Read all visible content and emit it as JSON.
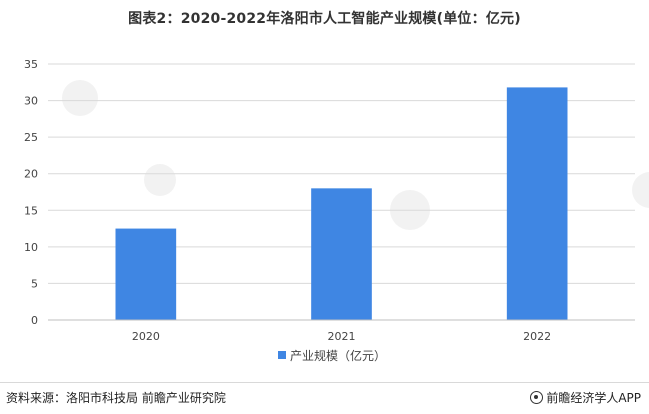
{
  "chart_data": {
    "type": "bar",
    "title": "图表2：2020-2022年洛阳市人工智能产业规模(单位：亿元)",
    "categories": [
      "2020",
      "2021",
      "2022"
    ],
    "series": [
      {
        "name": "产业规模（亿元）",
        "values": [
          12.5,
          18.0,
          31.8
        ],
        "color": "#3f86e3"
      }
    ],
    "yticks": [
      "0",
      "5",
      "10",
      "15",
      "20",
      "25",
      "30",
      "35"
    ],
    "ylim": [
      0,
      35
    ],
    "grid": true,
    "legend": "bottom-center"
  },
  "footer": {
    "source": "资料来源：洛阳市科技局 前瞻产业研究院",
    "brand": "前瞻经济学人APP",
    "brand_icon": "qianzhan-logo-icon"
  }
}
